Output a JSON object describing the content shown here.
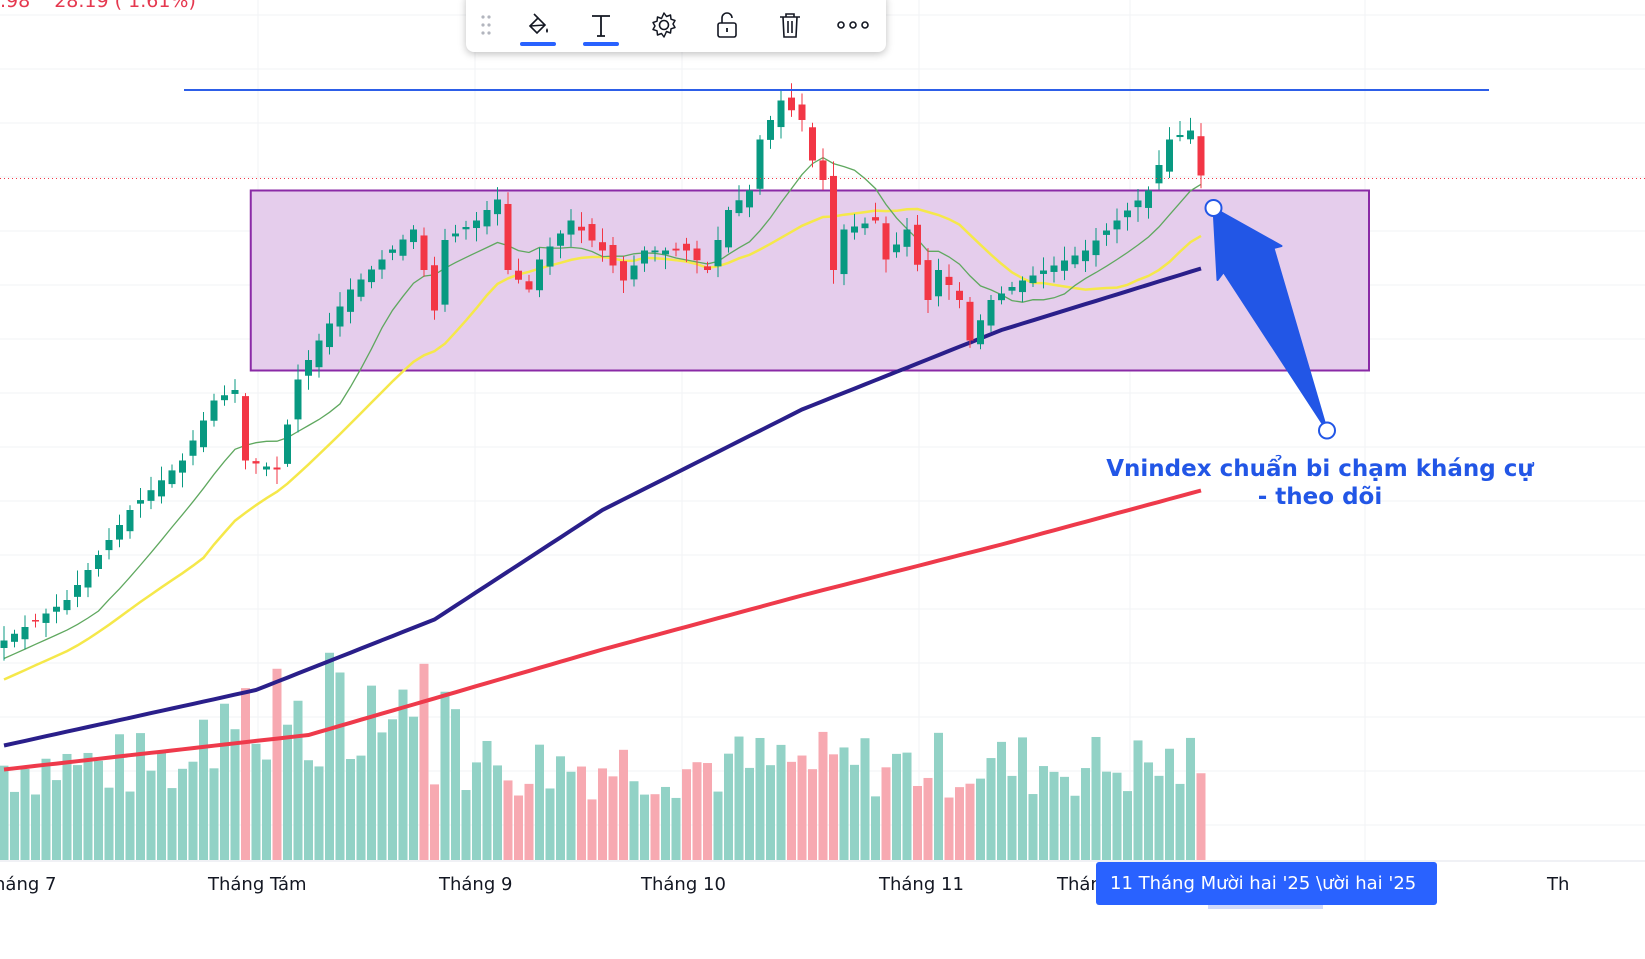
{
  "legend": {
    "partial_value": ".98",
    "change": "28.19 ( 1.61%)",
    "color": "#e5384f"
  },
  "toolbar": {
    "items": [
      {
        "icon": "drag-handle-icon"
      },
      {
        "icon": "paint-bucket-icon",
        "active": true
      },
      {
        "icon": "text-icon",
        "active": true
      },
      {
        "icon": "gear-icon"
      },
      {
        "icon": "lock-open-icon"
      },
      {
        "icon": "trash-icon"
      },
      {
        "icon": "more-icon"
      }
    ]
  },
  "annotation": {
    "line1": "Vnindex chuẩn bi chạm kháng cự",
    "line2": "- theo dõi",
    "color": "#2256e6"
  },
  "time_axis": {
    "labels": [
      "háng 7",
      "Tháng Tám",
      "Tháng 9",
      "Tháng 10",
      "Tháng 11",
      "Thán",
      "Th"
    ],
    "crosshair_label": "11 Tháng Mười hai '25  \\ười hai '25"
  },
  "chart_data": {
    "type": "candlestick",
    "title": "",
    "colors": {
      "up": "#089981",
      "down": "#f23645",
      "vol_up": "#92d2c6",
      "vol_down": "#f7a9b1",
      "ma_fast": "#5fa85f",
      "ma_mid": "#f5e84a",
      "ma_slow": "#2a1f8a",
      "ma_long": "#ee3a4b",
      "resistance": "#2d5ee8",
      "box_fill": "#e5cdec",
      "box_border": "#8a2aa6"
    },
    "ylim": [
      1200,
      1800
    ],
    "candle_count": 115,
    "close_keypoints": [
      [
        0,
        1373
      ],
      [
        6,
        1400
      ],
      [
        12,
        1460
      ],
      [
        17,
        1493
      ],
      [
        20,
        1533
      ],
      [
        22,
        1540
      ],
      [
        23,
        1493
      ],
      [
        26,
        1487
      ],
      [
        28,
        1547
      ],
      [
        30,
        1573
      ],
      [
        33,
        1607
      ],
      [
        36,
        1627
      ],
      [
        39,
        1647
      ],
      [
        40,
        1620
      ],
      [
        41,
        1593
      ],
      [
        42,
        1640
      ],
      [
        45,
        1653
      ],
      [
        47,
        1667
      ],
      [
        48,
        1620
      ],
      [
        50,
        1607
      ],
      [
        51,
        1627
      ],
      [
        54,
        1653
      ],
      [
        57,
        1633
      ],
      [
        59,
        1613
      ],
      [
        61,
        1633
      ],
      [
        65,
        1633
      ],
      [
        67,
        1620
      ],
      [
        69,
        1660
      ],
      [
        71,
        1673
      ],
      [
        72,
        1707
      ],
      [
        74,
        1733
      ],
      [
        76,
        1720
      ],
      [
        77,
        1693
      ],
      [
        78,
        1680
      ],
      [
        79,
        1620
      ],
      [
        80,
        1647
      ],
      [
        83,
        1653
      ],
      [
        84,
        1627
      ],
      [
        86,
        1647
      ],
      [
        88,
        1600
      ],
      [
        89,
        1620
      ],
      [
        91,
        1600
      ],
      [
        92,
        1573
      ],
      [
        94,
        1600
      ],
      [
        97,
        1613
      ],
      [
        100,
        1623
      ],
      [
        103,
        1633
      ],
      [
        106,
        1653
      ],
      [
        109,
        1673
      ],
      [
        111,
        1707
      ],
      [
        113,
        1713
      ],
      [
        114,
        1683
      ]
    ],
    "ma_slow_keypoints": [
      [
        0,
        1303
      ],
      [
        24,
        1340
      ],
      [
        41,
        1387
      ],
      [
        57,
        1460
      ],
      [
        76,
        1527
      ],
      [
        95,
        1580
      ],
      [
        114,
        1621
      ]
    ],
    "ma_long_keypoints": [
      [
        0,
        1287
      ],
      [
        29,
        1310
      ],
      [
        57,
        1367
      ],
      [
        76,
        1403
      ],
      [
        95,
        1437
      ],
      [
        114,
        1473
      ]
    ],
    "resistance_level": 1740,
    "range_box": {
      "top": 1673,
      "bottom": 1553,
      "from_index": 23.5,
      "to_index": 130
    },
    "arrow": {
      "from": [
        126,
        1513
      ],
      "to": [
        115,
        1660
      ]
    }
  }
}
